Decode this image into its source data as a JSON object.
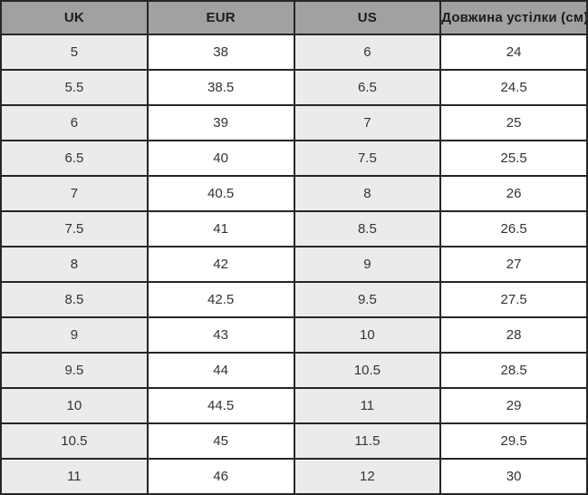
{
  "chart_data": {
    "type": "table",
    "title": "",
    "columns": [
      "UK",
      "EUR",
      "US",
      "Довжина устілки (см)"
    ],
    "rows": [
      [
        "5",
        "38",
        "6",
        "24"
      ],
      [
        "5.5",
        "38.5",
        "6.5",
        "24.5"
      ],
      [
        "6",
        "39",
        "7",
        "25"
      ],
      [
        "6.5",
        "40",
        "7.5",
        "25.5"
      ],
      [
        "7",
        "40.5",
        "8",
        "26"
      ],
      [
        "7.5",
        "41",
        "8.5",
        "26.5"
      ],
      [
        "8",
        "42",
        "9",
        "27"
      ],
      [
        "8.5",
        "42.5",
        "9.5",
        "27.5"
      ],
      [
        "9",
        "43",
        "10",
        "28"
      ],
      [
        "9.5",
        "44",
        "10.5",
        "28.5"
      ],
      [
        "10",
        "44.5",
        "11",
        "29"
      ],
      [
        "10.5",
        "45",
        "11.5",
        "29.5"
      ],
      [
        "11",
        "46",
        "12",
        "30"
      ]
    ]
  },
  "colors": {
    "header_bg": "#a1a1a1",
    "stripe_bg": "#ebebeb",
    "row_bg": "#ffffff",
    "border": "#262626",
    "header_text": "#1c1c1c",
    "cell_text": "#333333"
  }
}
